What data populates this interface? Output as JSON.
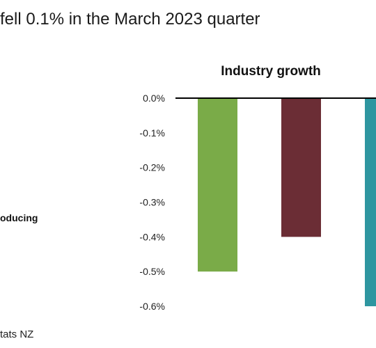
{
  "headline": "fell 0.1% in the March 2023 quarter",
  "left_label": "oducing",
  "source": "tats NZ",
  "chart_data": {
    "type": "bar",
    "title": "Industry growth",
    "categories": [
      "",
      "",
      ""
    ],
    "values": [
      -0.5,
      -0.4,
      -0.6
    ],
    "colors": [
      "#7aab48",
      "#6b2d35",
      "#2e96a0"
    ],
    "ylim": [
      -0.6,
      0.0
    ],
    "yticks": [
      0.0,
      -0.1,
      -0.2,
      -0.3,
      -0.4,
      -0.5,
      -0.6
    ],
    "ytick_labels": [
      "0.0%",
      "-0.1%",
      "-0.2%",
      "-0.3%",
      "-0.4%",
      "-0.5%",
      "-0.6%"
    ],
    "grid": false,
    "legend": "none"
  }
}
